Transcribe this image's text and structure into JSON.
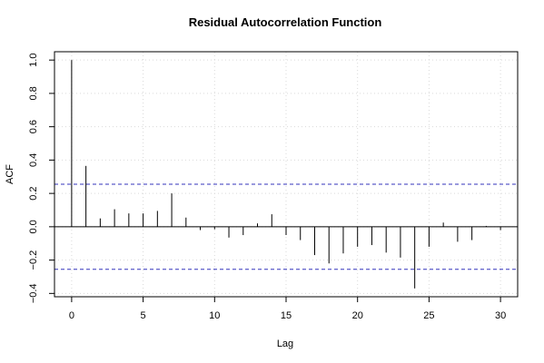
{
  "chart_data": {
    "type": "bar",
    "title": "Residual Autocorrelation Function",
    "xlabel": "Lag",
    "ylabel": "ACF",
    "xlim": [
      -1.2,
      31.2
    ],
    "ylim": [
      -0.42,
      1.05
    ],
    "xticks": [
      0,
      5,
      10,
      15,
      20,
      25,
      30
    ],
    "yticks": [
      -0.4,
      -0.2,
      0.0,
      0.2,
      0.4,
      0.6,
      0.8,
      1.0
    ],
    "ytick_labels": [
      "−0.4",
      "−0.2",
      "0.0",
      "0.2",
      "0.4",
      "0.6",
      "0.8",
      "1.0"
    ],
    "grid": true,
    "confidence_bound": 0.255,
    "colors": {
      "bars": "#000000",
      "bounds": "#3333bb",
      "zero_line": "#000000",
      "grid": "#d9d9d9"
    },
    "lags": [
      0,
      1,
      2,
      3,
      4,
      5,
      6,
      7,
      8,
      9,
      10,
      11,
      12,
      13,
      14,
      15,
      16,
      17,
      18,
      19,
      20,
      21,
      22,
      23,
      24,
      25,
      26,
      27,
      28,
      29,
      30
    ],
    "values": [
      1.0,
      0.365,
      0.05,
      0.105,
      0.08,
      0.08,
      0.095,
      0.2,
      0.055,
      -0.02,
      -0.015,
      -0.065,
      -0.05,
      0.02,
      0.075,
      -0.05,
      -0.08,
      -0.17,
      -0.22,
      -0.16,
      -0.12,
      -0.11,
      -0.155,
      -0.185,
      -0.37,
      -0.12,
      0.025,
      -0.09,
      -0.08,
      0.005,
      -0.02
    ]
  }
}
